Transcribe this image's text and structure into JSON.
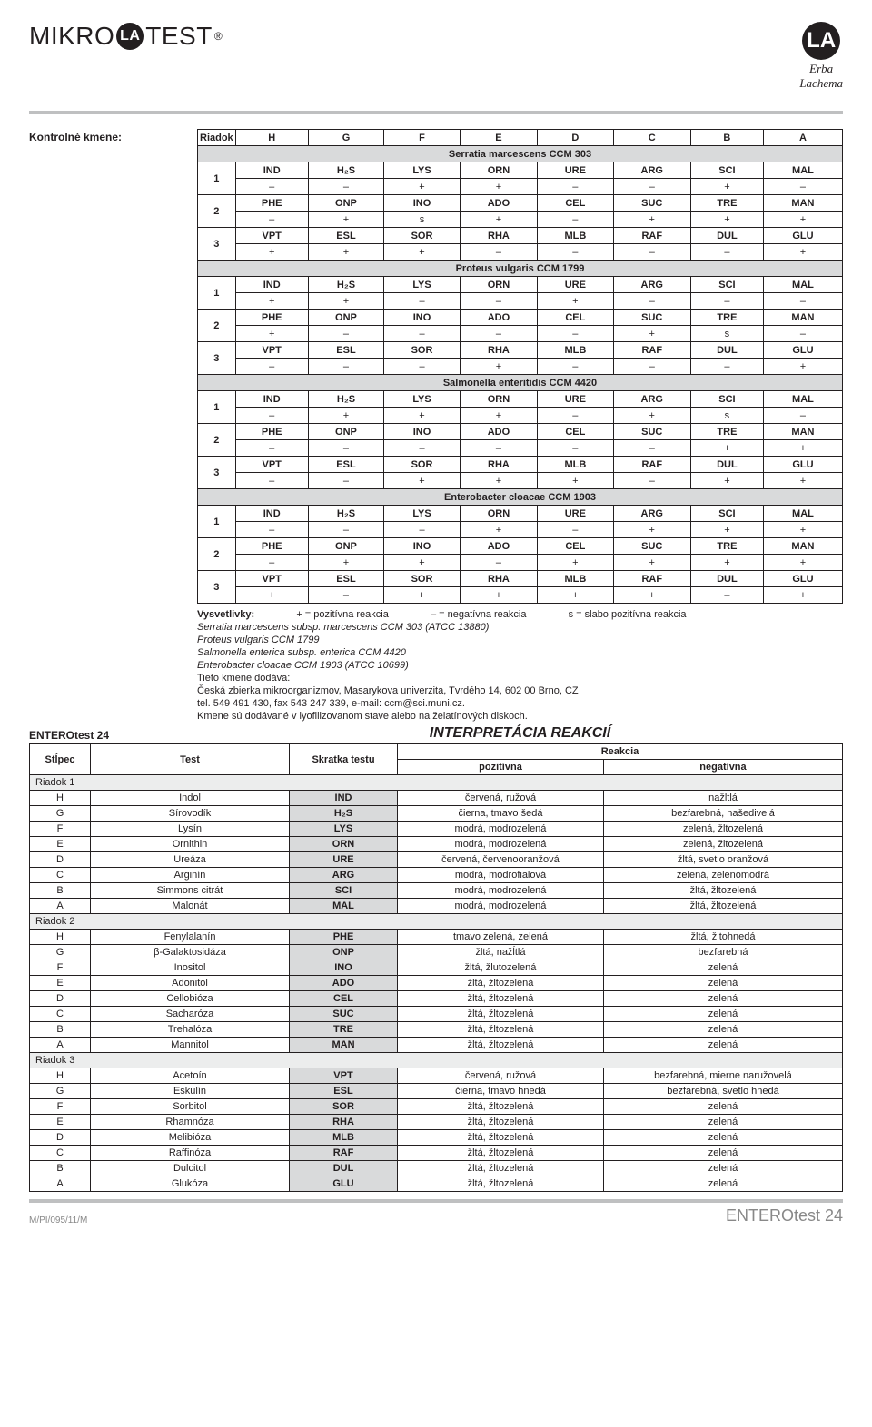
{
  "brand": {
    "left_pre": "MIKRO",
    "left_mid": "LA",
    "left_post": "TEST",
    "reg": "®",
    "right_circ": "LA",
    "right_pre": "Erba",
    "right_post": "Lachema"
  },
  "section_title": "Kontrolné kmene:",
  "kt_head": [
    "Riadok",
    "H",
    "G",
    "F",
    "E",
    "D",
    "C",
    "B",
    "A"
  ],
  "organisms": [
    {
      "name": "Serratia marcescens CCM 303",
      "rows": [
        {
          "n": "1",
          "a": [
            "IND",
            "H₂S",
            "LYS",
            "ORN",
            "URE",
            "ARG",
            "SCI",
            "MAL"
          ],
          "b": [
            "–",
            "–",
            "+",
            "+",
            "–",
            "–",
            "+",
            "–"
          ]
        },
        {
          "n": "2",
          "a": [
            "PHE",
            "ONP",
            "INO",
            "ADO",
            "CEL",
            "SUC",
            "TRE",
            "MAN"
          ],
          "b": [
            "–",
            "+",
            "s",
            "+",
            "–",
            "+",
            "+",
            "+"
          ]
        },
        {
          "n": "3",
          "a": [
            "VPT",
            "ESL",
            "SOR",
            "RHA",
            "MLB",
            "RAF",
            "DUL",
            "GLU"
          ],
          "b": [
            "+",
            "+",
            "+",
            "–",
            "–",
            "–",
            "–",
            "+"
          ]
        }
      ]
    },
    {
      "name": "Proteus vulgaris CCM 1799",
      "rows": [
        {
          "n": "1",
          "a": [
            "IND",
            "H₂S",
            "LYS",
            "ORN",
            "URE",
            "ARG",
            "SCI",
            "MAL"
          ],
          "b": [
            "+",
            "+",
            "–",
            "–",
            "+",
            "–",
            "–",
            "–"
          ]
        },
        {
          "n": "2",
          "a": [
            "PHE",
            "ONP",
            "INO",
            "ADO",
            "CEL",
            "SUC",
            "TRE",
            "MAN"
          ],
          "b": [
            "+",
            "–",
            "–",
            "–",
            "–",
            "+",
            "s",
            "–"
          ]
        },
        {
          "n": "3",
          "a": [
            "VPT",
            "ESL",
            "SOR",
            "RHA",
            "MLB",
            "RAF",
            "DUL",
            "GLU"
          ],
          "b": [
            "–",
            "–",
            "–",
            "+",
            "–",
            "–",
            "–",
            "+"
          ]
        }
      ]
    },
    {
      "name": "Salmonella enteritidis CCM 4420",
      "rows": [
        {
          "n": "1",
          "a": [
            "IND",
            "H₂S",
            "LYS",
            "ORN",
            "URE",
            "ARG",
            "SCI",
            "MAL"
          ],
          "b": [
            "–",
            "+",
            "+",
            "+",
            "–",
            "+",
            "s",
            "–"
          ]
        },
        {
          "n": "2",
          "a": [
            "PHE",
            "ONP",
            "INO",
            "ADO",
            "CEL",
            "SUC",
            "TRE",
            "MAN"
          ],
          "b": [
            "–",
            "–",
            "–",
            "–",
            "–",
            "–",
            "+",
            "+"
          ]
        },
        {
          "n": "3",
          "a": [
            "VPT",
            "ESL",
            "SOR",
            "RHA",
            "MLB",
            "RAF",
            "DUL",
            "GLU"
          ],
          "b": [
            "–",
            "–",
            "+",
            "+",
            "+",
            "–",
            "+",
            "+"
          ]
        }
      ]
    },
    {
      "name": "Enterobacter cloacae CCM 1903",
      "rows": [
        {
          "n": "1",
          "a": [
            "IND",
            "H₂S",
            "LYS",
            "ORN",
            "URE",
            "ARG",
            "SCI",
            "MAL"
          ],
          "b": [
            "–",
            "–",
            "–",
            "+",
            "–",
            "+",
            "+",
            "+"
          ]
        },
        {
          "n": "2",
          "a": [
            "PHE",
            "ONP",
            "INO",
            "ADO",
            "CEL",
            "SUC",
            "TRE",
            "MAN"
          ],
          "b": [
            "–",
            "+",
            "+",
            "–",
            "+",
            "+",
            "+",
            "+"
          ]
        },
        {
          "n": "3",
          "a": [
            "VPT",
            "ESL",
            "SOR",
            "RHA",
            "MLB",
            "RAF",
            "DUL",
            "GLU"
          ],
          "b": [
            "+",
            "–",
            "+",
            "+",
            "+",
            "+",
            "–",
            "+"
          ]
        }
      ]
    }
  ],
  "legend": {
    "head": "Vysvetlivky:",
    "p": "+ = pozitívna reakcia",
    "n": "– = negatívna reakcia",
    "s": "s = slabo pozitívna reakcia",
    "l1": "Serratia marcescens subsp. marcescens CCM 303 (ATCC 13880)",
    "l2": "Proteus vulgaris CCM 1799",
    "l3": "Salmonella enterica subsp. enterica CCM 4420",
    "l4": "Enterobacter cloacae CCM 1903 (ATCC 10699)",
    "l5": "Tieto kmene dodáva:",
    "l6": "Česká zbierka mikroorganizmov, Masarykova univerzita, Tvrdého 14, 602 00 Brno, CZ",
    "l7": "tel. 549 491 430, fax 543 247 339, e-mail: ccm@sci.muni.cz.",
    "l8": "Kmene sú dodávané v lyofilizovanom stave alebo na želatínových diskoch."
  },
  "enterotest": "ENTEROtest 24",
  "interp_title": "INTERPRETÁCIA REAKCIÍ",
  "ith": {
    "c1": "Stĺpec",
    "c2": "Test",
    "c3": "Skratka testu",
    "c4": "Reakcia",
    "c4a": "pozitívna",
    "c4b": "negatívna"
  },
  "groups": [
    {
      "head": "Riadok 1",
      "rows": [
        [
          "H",
          "Indol",
          "IND",
          "červená, ružová",
          "nažltlá"
        ],
        [
          "G",
          "Sírovodík",
          "H₂S",
          "čierna, tmavo šedá",
          "bezfarebná, našedivelá"
        ],
        [
          "F",
          "Lysín",
          "LYS",
          "modrá, modrozelená",
          "zelená, žltozelená"
        ],
        [
          "E",
          "Ornithin",
          "ORN",
          "modrá, modrozelená",
          "zelená, žltozelená"
        ],
        [
          "D",
          "Ureáza",
          "URE",
          "červená, červenooranžová",
          "žltá, svetlo oranžová"
        ],
        [
          "C",
          "Arginín",
          "ARG",
          "modrá, modrofialová",
          "zelená, zelenomodrá"
        ],
        [
          "B",
          "Simmons citrát",
          "SCI",
          "modrá, modrozelená",
          "žltá, žltozelená"
        ],
        [
          "A",
          "Malonát",
          "MAL",
          "modrá, modrozelená",
          "žltá, žltozelená"
        ]
      ]
    },
    {
      "head": "Riadok 2",
      "rows": [
        [
          "H",
          "Fenylalanín",
          "PHE",
          "tmavo zelená, zelená",
          "žltá, žltohnedá"
        ],
        [
          "G",
          "β-Galaktosidáza",
          "ONP",
          "žltá, nažĺtlá",
          "bezfarebná"
        ],
        [
          "F",
          "Inositol",
          "INO",
          "žltá, žlutozelená",
          "zelená"
        ],
        [
          "E",
          "Adonitol",
          "ADO",
          "žltá, žltozelená",
          "zelená"
        ],
        [
          "D",
          "Cellobióza",
          "CEL",
          "žltá, žltozelená",
          "zelená"
        ],
        [
          "C",
          "Sacharóza",
          "SUC",
          "žltá, žltozelená",
          "zelená"
        ],
        [
          "B",
          "Trehalóza",
          "TRE",
          "žltá, žltozelená",
          "zelená"
        ],
        [
          "A",
          "Mannitol",
          "MAN",
          "žltá, žltozelená",
          "zelená"
        ]
      ]
    },
    {
      "head": "Riadok 3",
      "rows": [
        [
          "H",
          "Acetoín",
          "VPT",
          "červená, ružová",
          "bezfarebná, mierne naružovelá"
        ],
        [
          "G",
          "Eskulín",
          "ESL",
          "čierna, tmavo hnedá",
          "bezfarebná, svetlo hnedá"
        ],
        [
          "F",
          "Sorbitol",
          "SOR",
          "žltá, žltozelená",
          "zelená"
        ],
        [
          "E",
          "Rhamnóza",
          "RHA",
          "žltá, žltozelená",
          "zelená"
        ],
        [
          "D",
          "Melibióza",
          "MLB",
          "žltá, žltozelená",
          "zelená"
        ],
        [
          "C",
          "Raffinóza",
          "RAF",
          "žltá, žltozelená",
          "zelená"
        ],
        [
          "B",
          "Dulcitol",
          "DUL",
          "žltá, žltozelená",
          "zelená"
        ],
        [
          "A",
          "Glukóza",
          "GLU",
          "žltá, žltozelená",
          "zelená"
        ]
      ]
    }
  ],
  "footer": {
    "left": "M/PI/095/11/M",
    "right": "ENTEROtest 24"
  }
}
